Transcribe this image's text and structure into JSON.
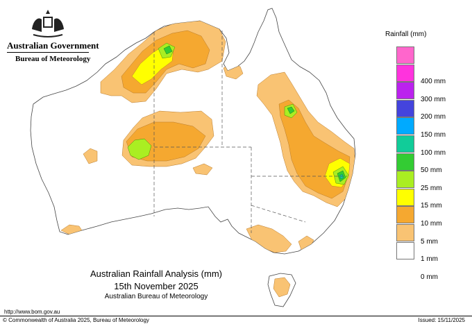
{
  "header": {
    "government": "Australian Government",
    "bureau": "Bureau of Meteorology"
  },
  "legend": {
    "title": "Rainfall (mm)",
    "items": [
      {
        "label": "",
        "color": "#ff66cc"
      },
      {
        "label": "400 mm",
        "color": "#ff33dd"
      },
      {
        "label": "300 mm",
        "color": "#bb22ee"
      },
      {
        "label": "200 mm",
        "color": "#4444dd"
      },
      {
        "label": "150 mm",
        "color": "#00aaff"
      },
      {
        "label": "100 mm",
        "color": "#11cc99"
      },
      {
        "label": "50 mm",
        "color": "#33cc33"
      },
      {
        "label": "25 mm",
        "color": "#aaee22"
      },
      {
        "label": "15 mm",
        "color": "#ffff00"
      },
      {
        "label": "10 mm",
        "color": "#f5a830"
      },
      {
        "label": "5 mm",
        "color": "#f9c373"
      },
      {
        "label": "1 mm",
        "color": "#ffffff"
      },
      {
        "label": "0 mm",
        "color": null
      }
    ]
  },
  "map": {
    "title": "Australian Rainfall Analysis (mm)",
    "date": "15th November 2025",
    "source": "Australian Bureau of Meteorology"
  },
  "footer": {
    "url": "http://www.bom.gov.au",
    "copyright": "© Commonwealth of Australia 2025, Bureau of Meteorology",
    "issued": "Issued: 15/11/2025"
  }
}
